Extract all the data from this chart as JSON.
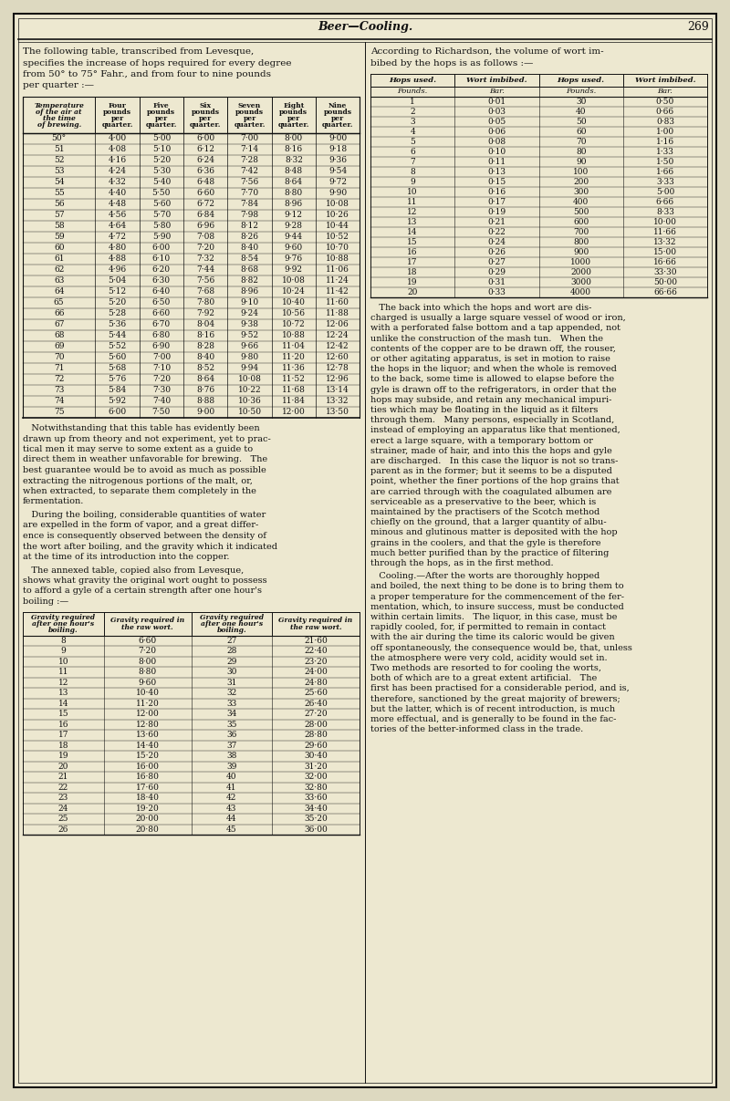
{
  "bg_color": "#ddd9c0",
  "page_bg": "#ede8d0",
  "border_color": "#111111",
  "text_color": "#111111",
  "header_text": "Beer—Cooling.",
  "page_number": "269",
  "left_intro_text": "The following table, transcribed from Levesque,\nspecifies the increase of hops required for every degree\nfrom 50° to 75° Fahr., and from four to nine pounds\nper quarter :—",
  "table1_headers": [
    "Temperature\nof the air at\nthe time\nof brewing.",
    "Four\npounds\nper\nquarter.",
    "Five\npounds\nper\nquarter.",
    "Six\npounds\nper\nquarter.",
    "Seven\npounds\nper\nquarter.",
    "Eight\npounds\nper\nquarter.",
    "Nine\npounds\nper\nquarter."
  ],
  "table1_data": [
    [
      "50°",
      "4·00",
      "5·00",
      "6·00",
      "7·00",
      "8·00",
      "9·00"
    ],
    [
      "51",
      "4·08",
      "5·10",
      "6·12",
      "7·14",
      "8·16",
      "9·18"
    ],
    [
      "52",
      "4·16",
      "5·20",
      "6·24",
      "7·28",
      "8·32",
      "9·36"
    ],
    [
      "53",
      "4·24",
      "5·30",
      "6·36",
      "7·42",
      "8·48",
      "9·54"
    ],
    [
      "54",
      "4·32",
      "5·40",
      "6·48",
      "7·56",
      "8·64",
      "9·72"
    ],
    [
      "55",
      "4·40",
      "5·50",
      "6·60",
      "7·70",
      "8·80",
      "9·90"
    ],
    [
      "56",
      "4·48",
      "5·60",
      "6·72",
      "7·84",
      "8·96",
      "10·08"
    ],
    [
      "57",
      "4·56",
      "5·70",
      "6·84",
      "7·98",
      "9·12",
      "10·26"
    ],
    [
      "58",
      "4·64",
      "5·80",
      "6·96",
      "8·12",
      "9·28",
      "10·44"
    ],
    [
      "59",
      "4·72",
      "5·90",
      "7·08",
      "8·26",
      "9·44",
      "10·52"
    ],
    [
      "60",
      "4·80",
      "6·00",
      "7·20",
      "8·40",
      "9·60",
      "10·70"
    ],
    [
      "61",
      "4·88",
      "6·10",
      "7·32",
      "8·54",
      "9·76",
      "10·88"
    ],
    [
      "62",
      "4·96",
      "6·20",
      "7·44",
      "8·68",
      "9·92",
      "11·06"
    ],
    [
      "63",
      "5·04",
      "6·30",
      "7·56",
      "8·82",
      "10·08",
      "11·24"
    ],
    [
      "64",
      "5·12",
      "6·40",
      "7·68",
      "8·96",
      "10·24",
      "11·42"
    ],
    [
      "65",
      "5·20",
      "6·50",
      "7·80",
      "9·10",
      "10·40",
      "11·60"
    ],
    [
      "66",
      "5·28",
      "6·60",
      "7·92",
      "9·24",
      "10·56",
      "11·88"
    ],
    [
      "67",
      "5·36",
      "6·70",
      "8·04",
      "9·38",
      "10·72",
      "12·06"
    ],
    [
      "68",
      "5·44",
      "6·80",
      "8·16",
      "9·52",
      "10·88",
      "12·24"
    ],
    [
      "69",
      "5·52",
      "6·90",
      "8·28",
      "9·66",
      "11·04",
      "12·42"
    ],
    [
      "70",
      "5·60",
      "7·00",
      "8·40",
      "9·80",
      "11·20",
      "12·60"
    ],
    [
      "71",
      "5·68",
      "7·10",
      "8·52",
      "9·94",
      "11·36",
      "12·78"
    ],
    [
      "72",
      "5·76",
      "7·20",
      "8·64",
      "10·08",
      "11·52",
      "12·96"
    ],
    [
      "73",
      "5·84",
      "7·30",
      "8·76",
      "10·22",
      "11·68",
      "13·14"
    ],
    [
      "74",
      "5·92",
      "7·40",
      "8·88",
      "10·36",
      "11·84",
      "13·32"
    ],
    [
      "75",
      "6·00",
      "7·50",
      "9·00",
      "10·50",
      "12·00",
      "13·50"
    ]
  ],
  "para1": "   Notwithstanding that this table has evidently been\ndrawn up from theory and not experiment, yet to prac-\ntical men it may serve to some extent as a guide to\ndirect them in weather unfavorable for brewing.   The\nbest guarantee would be to avoid as much as possible\nextracting the nitrogenous portions of the malt, or,\nwhen extracted, to separate them completely in the\nfermentation.",
  "para2": "   During the boiling, considerable quantities of water\nare expelled in the form of vapor, and a great differ-\nence is consequently observed between the density of\nthe wort after boiling, and the gravity which it indicated\nat the time of its introduction into the copper.",
  "para3": "   The annexed table, copied also from Levesque,\nshows what gravity the original wort ought to possess\nto afford a gyle of a certain strength after one hour's\nboiling :—",
  "table2_col_headers": [
    "Gravity required\nafter one hour's\nboiling.",
    "Gravity required in\nthe raw wort.",
    "Gravity required\nafter one hour's\nboiling.",
    "Gravity required in\nthe raw wort."
  ],
  "table2_data": [
    [
      "8",
      "6·60",
      "27",
      "21·60"
    ],
    [
      "9",
      "7·20",
      "28",
      "22·40"
    ],
    [
      "10",
      "8·00",
      "29",
      "23·20"
    ],
    [
      "11",
      "8·80",
      "30",
      "24·00"
    ],
    [
      "12",
      "9·60",
      "31",
      "24·80"
    ],
    [
      "13",
      "10·40",
      "32",
      "25·60"
    ],
    [
      "14",
      "11·20",
      "33",
      "26·40"
    ],
    [
      "15",
      "12·00",
      "34",
      "27·20"
    ],
    [
      "16",
      "12·80",
      "35",
      "28·00"
    ],
    [
      "17",
      "13·60",
      "36",
      "28·80"
    ],
    [
      "18",
      "14·40",
      "37",
      "29·60"
    ],
    [
      "19",
      "15·20",
      "38",
      "30·40"
    ],
    [
      "20",
      "16·00",
      "39",
      "31·20"
    ],
    [
      "21",
      "16·80",
      "40",
      "32·00"
    ],
    [
      "22",
      "17·60",
      "41",
      "32·80"
    ],
    [
      "23",
      "18·40",
      "42",
      "33·60"
    ],
    [
      "24",
      "19·20",
      "43",
      "34·40"
    ],
    [
      "25",
      "20·00",
      "44",
      "35·20"
    ],
    [
      "26",
      "20·80",
      "45",
      "36·00"
    ]
  ],
  "right_intro_text": "According to Richardson, the volume of wort im-\nbibed by the hops is as follows :—",
  "table3_headers": [
    "Hops used.",
    "Wort imbibed.",
    "Hops used.",
    "Wort imbibed."
  ],
  "table3_subheaders": [
    "Pounds.",
    "Bar.",
    "Pounds.",
    "Bar."
  ],
  "table3_data": [
    [
      "1",
      "0·01",
      "30",
      "0·50"
    ],
    [
      "2",
      "0·03",
      "40",
      "0·66"
    ],
    [
      "3",
      "0·05",
      "50",
      "0·83"
    ],
    [
      "4",
      "0·06",
      "60",
      "1·00"
    ],
    [
      "5",
      "0·08",
      "70",
      "1·16"
    ],
    [
      "6",
      "0·10",
      "80",
      "1·33"
    ],
    [
      "7",
      "0·11",
      "90",
      "1·50"
    ],
    [
      "8",
      "0·13",
      "100",
      "1·66"
    ],
    [
      "9",
      "0·15",
      "200",
      "3·33"
    ],
    [
      "10",
      "0·16",
      "300",
      "5·00"
    ],
    [
      "11",
      "0·17",
      "400",
      "6·66"
    ],
    [
      "12",
      "0·19",
      "500",
      "8·33"
    ],
    [
      "13",
      "0·21",
      "600",
      "10·00"
    ],
    [
      "14",
      "0·22",
      "700",
      "11·66"
    ],
    [
      "15",
      "0·24",
      "800",
      "13·32"
    ],
    [
      "16",
      "0·26",
      "900",
      "15·00"
    ],
    [
      "17",
      "0·27",
      "1000",
      "16·66"
    ],
    [
      "18",
      "0·29",
      "2000",
      "33·30"
    ],
    [
      "19",
      "0·31",
      "3000",
      "50·00"
    ],
    [
      "20",
      "0·33",
      "4000",
      "66·66"
    ]
  ],
  "right_para1": "   The back into which the hops and wort are dis-\ncharged is usually a large square vessel of wood or iron,\nwith a perforated false bottom and a tap appended, not\nunlike the construction of the mash tun.   When the\ncontents of the copper are to be drawn off, the rouser,\nor other agitating apparatus, is set in motion to raise\nthe hops in the liquor; and when the whole is removed\nto the back, some time is allowed to elapse before the\ngyle is drawn off to the refrigerators, in order that the\nhops may subside, and retain any mechanical impuri-\nties which may be floating in the liquid as it filters\nthrough them.   Many persons, especially in Scotland,\ninstead of employing an apparatus like that mentioned,\nerect a large square, with a temporary bottom or\nstrainer, made of hair, and into this the hops and gyle\nare discharged.   In this case the liquor is not so trans-\nparent as in the former; but it seems to be a disputed\npoint, whether the finer portions of the hop grains that\nare carried through with the coagulated albumen are\nserviceable as a preservative to the beer, which is\nmaintained by the practisers of the Scotch method\nchiefly on the ground, that a larger quantity of albu-\nminous and glutinous matter is deposited with the hop\ngrains in the coolers, and that the gyle is therefore\nmuch better purified than by the practice of filtering\nthrough the hops, as in the first method.",
  "right_para2": "   Cooling.—After the worts are thoroughly hopped\nand boiled, the next thing to be done is to bring them to\na proper temperature for the commencement of the fer-\nmentation, which, to insure success, must be conducted\nwithin certain limits.   The liquor, in this case, must be\nrapidly cooled, for, if permitted to remain in contact\nwith the air during the time its caloric would be given\noff spontaneously, the consequence would be, that, unless\nthe atmosphere were very cold, acidity would set in.\nTwo methods are resorted to for cooling the worts,\nboth of which are to a great extent artificial.   The\nfirst has been practised for a considerable period, and is,\ntherefore, sanctioned by the great majority of brewers;\nbut the latter, which is of recent introduction, is much\nmore effectual, and is generally to be found in the fac-\ntories of the better-informed class in the trade."
}
